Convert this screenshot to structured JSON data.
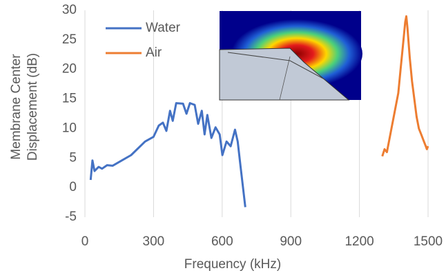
{
  "chart_data": {
    "type": "line",
    "xlabel": "Frequency (kHz)",
    "ylabel": "Membrane Center Displacement (dB)",
    "xlim": [
      0,
      1500
    ],
    "xticks": [
      0,
      300,
      600,
      900,
      1200,
      1500
    ],
    "ylim": [
      -5,
      30
    ],
    "yticks": [
      -5,
      0,
      5,
      10,
      15,
      20,
      25,
      30
    ],
    "grid": "x",
    "legend": "upper left",
    "series": [
      {
        "name": "Water",
        "color": "#4472c4",
        "x": [
          25,
          33,
          42,
          60,
          75,
          97,
          121,
          157,
          202,
          263,
          300,
          323,
          341,
          356,
          372,
          384,
          399,
          429,
          444,
          459,
          480,
          495,
          511,
          523,
          535,
          553,
          571,
          589,
          601,
          619,
          637,
          656,
          668,
          680,
          701
        ],
        "values": [
          1.3,
          4.6,
          2.8,
          3.5,
          3.2,
          3.8,
          3.7,
          4.5,
          5.5,
          7.8,
          8.6,
          10.5,
          11,
          9.6,
          13,
          11.3,
          14.3,
          14.2,
          12.5,
          14.3,
          14,
          10.8,
          13,
          9,
          12.3,
          8.4,
          10.2,
          9,
          5.5,
          7.8,
          7,
          9.8,
          7.8,
          3.7,
          -3.3
        ]
      },
      {
        "name": "Air",
        "color": "#ed7d31",
        "x": [
          1300,
          1310,
          1320,
          1330,
          1340,
          1350,
          1360,
          1370,
          1380,
          1390,
          1400,
          1405,
          1410,
          1420,
          1430,
          1440,
          1450,
          1460,
          1470,
          1480,
          1490,
          1495,
          1500
        ],
        "values": [
          5.3,
          6.5,
          6,
          8,
          10,
          12,
          14,
          16,
          20,
          24,
          28,
          29,
          27,
          22,
          18,
          15,
          12,
          10,
          9,
          8,
          7,
          6.5,
          7
        ]
      }
    ]
  }
}
